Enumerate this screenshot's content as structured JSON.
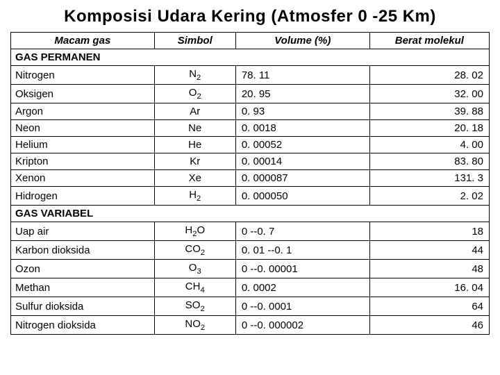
{
  "title": "Komposisi Udara Kering (Atmosfer 0 -25 Km)",
  "headers": {
    "gas": "Macam gas",
    "symbol": "Simbol",
    "volume": "Volume (%)",
    "weight": "Berat molekul"
  },
  "sections": {
    "permanent": "GAS PERMANEN",
    "variable": "GAS VARIABEL"
  },
  "permanent_rows": [
    {
      "name": "Nitrogen",
      "sym_base": "N",
      "sym_sub": "2",
      "volume": "78. 11",
      "weight": "28. 02"
    },
    {
      "name": "Oksigen",
      "sym_base": "O",
      "sym_sub": "2",
      "volume": "20. 95",
      "weight": "32. 00"
    },
    {
      "name": "Argon",
      "sym_base": "Ar",
      "sym_sub": "",
      "volume": "0. 93",
      "weight": "39. 88"
    },
    {
      "name": "Neon",
      "sym_base": "Ne",
      "sym_sub": "",
      "volume": "0. 0018",
      "weight": "20. 18"
    },
    {
      "name": "Helium",
      "sym_base": "He",
      "sym_sub": "",
      "volume": "0. 00052",
      "weight": "4. 00"
    },
    {
      "name": "Kripton",
      "sym_base": "Kr",
      "sym_sub": "",
      "volume": "0. 00014",
      "weight": "83. 80"
    },
    {
      "name": "Xenon",
      "sym_base": "Xe",
      "sym_sub": "",
      "volume": "0. 000087",
      "weight": "131. 3"
    },
    {
      "name": "Hidrogen",
      "sym_base": "H",
      "sym_sub": "2",
      "volume": "0. 000050",
      "weight": "2. 02"
    }
  ],
  "variable_rows": [
    {
      "name": "Uap air",
      "sym_base": "H",
      "sym_sub": "2",
      "sym_after": "O",
      "volume": "0 --0. 7",
      "weight": "18"
    },
    {
      "name": "Karbon dioksida",
      "sym_base": "CO",
      "sym_sub": "2",
      "sym_after": "",
      "volume": "0. 01 --0. 1",
      "weight": "44"
    },
    {
      "name": "Ozon",
      "sym_base": "O",
      "sym_sub": "3",
      "sym_after": "",
      "volume": "0 --0. 00001",
      "weight": "48"
    },
    {
      "name": "Methan",
      "sym_base": "CH",
      "sym_sub": "4",
      "sym_after": "",
      "volume": "   0. 0002",
      "weight": "16. 04"
    },
    {
      "name": "Sulfur dioksida",
      "sym_base": "SO",
      "sym_sub": "2",
      "sym_after": "",
      "volume": "0 --0. 0001",
      "weight": "64"
    },
    {
      "name": "Nitrogen dioksida",
      "sym_base": "NO",
      "sym_sub": "2",
      "sym_after": "",
      "volume": "0 --0. 000002",
      "weight": "46"
    }
  ]
}
